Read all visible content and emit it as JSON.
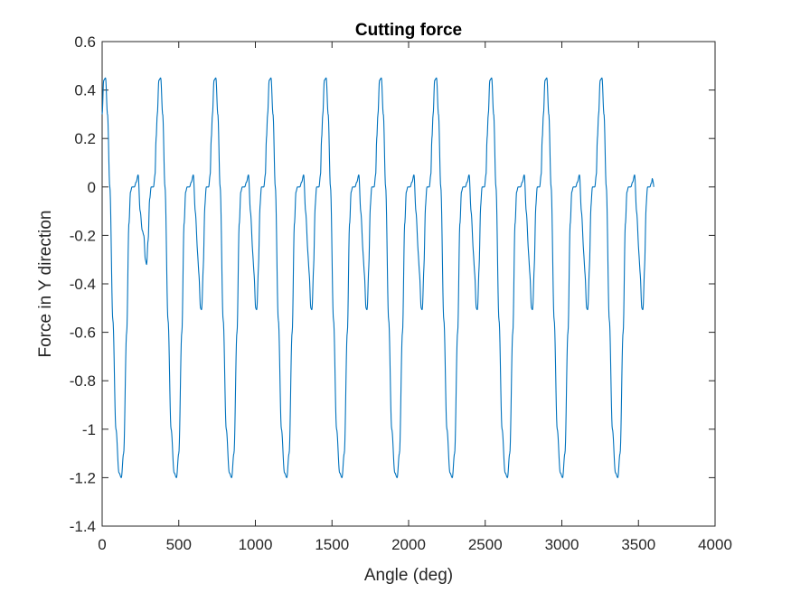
{
  "chart_data": {
    "type": "line",
    "title": "Cutting force",
    "xlabel": "Angle (deg)",
    "ylabel": "Force in Y direction",
    "xlim": [
      0,
      4000
    ],
    "ylim": [
      -1.4,
      0.6
    ],
    "xticks": [
      0,
      500,
      1000,
      1500,
      2000,
      2500,
      3000,
      3500,
      4000
    ],
    "xtick_labels": [
      "0",
      "500",
      "1000",
      "1500",
      "2000",
      "2500",
      "3000",
      "3500",
      "4000"
    ],
    "yticks": [
      -1.4,
      -1.2,
      -1.0,
      -0.8,
      -0.6,
      -0.4,
      -0.2,
      0,
      0.2,
      0.4,
      0.6
    ],
    "ytick_labels": [
      "-1.4",
      "-1.2",
      "-1",
      "-0.8",
      "-0.6",
      "-0.4",
      "-0.2",
      "0",
      "0.2",
      "0.4",
      "0.6"
    ],
    "grid": false,
    "legend": "none",
    "line_color": "#0072BD",
    "series": [
      {
        "period_deg": 360,
        "x_range": [
          0,
          3600
        ],
        "cycle_points": [
          [
            0,
            0.3
          ],
          [
            10,
            0.44
          ],
          [
            22,
            0.45
          ],
          [
            35,
            0.3
          ],
          [
            50,
            0.0
          ],
          [
            70,
            -0.55
          ],
          [
            90,
            -1.0
          ],
          [
            110,
            -1.18
          ],
          [
            125,
            -1.2
          ],
          [
            140,
            -1.1
          ],
          [
            160,
            -0.6
          ],
          [
            175,
            -0.15
          ],
          [
            185,
            -0.02
          ],
          [
            195,
            0.0
          ],
          [
            210,
            0.0
          ],
          [
            222,
            0.02
          ],
          [
            235,
            0.05
          ],
          [
            248,
            -0.1
          ],
          [
            262,
            -0.18
          ],
          [
            272,
            -0.2
          ],
          [
            282,
            -0.3
          ],
          [
            290,
            -0.32
          ],
          [
            300,
            -0.22
          ],
          [
            310,
            -0.05
          ],
          [
            320,
            0.0
          ],
          [
            335,
            0.0
          ],
          [
            345,
            0.05
          ],
          [
            352,
            0.2
          ],
          [
            360,
            0.3
          ]
        ],
        "cycle_peaks": [
          [
            380,
            0.52
          ],
          [
            740,
            0.48
          ],
          [
            1100,
            0.48
          ],
          [
            1460,
            0.51
          ],
          [
            1820,
            0.5
          ],
          [
            2180,
            0.5
          ],
          [
            2540,
            0.5
          ],
          [
            2900,
            0.5
          ],
          [
            3260,
            0.5
          ]
        ],
        "cycle_troughs": [
          [
            125,
            -1.2
          ],
          [
            490,
            -1.2
          ],
          [
            850,
            -1.2
          ],
          [
            1210,
            -1.22
          ],
          [
            1570,
            -1.21
          ],
          [
            1930,
            -1.21
          ],
          [
            2290,
            -1.21
          ],
          [
            2650,
            -1.21
          ],
          [
            3010,
            -1.21
          ],
          [
            3370,
            -1.21
          ]
        ],
        "secondary_dips": [
          [
            295,
            -0.33
          ],
          [
            655,
            -0.51
          ],
          [
            1020,
            -0.52
          ],
          [
            1380,
            -0.5
          ],
          [
            1735,
            -0.48
          ],
          [
            2095,
            -0.48
          ],
          [
            2450,
            -0.48
          ],
          [
            2810,
            -0.48
          ],
          [
            3175,
            -0.49
          ],
          [
            3535,
            -0.49
          ]
        ],
        "end_point": [
          3600,
          0.0
        ]
      }
    ]
  }
}
